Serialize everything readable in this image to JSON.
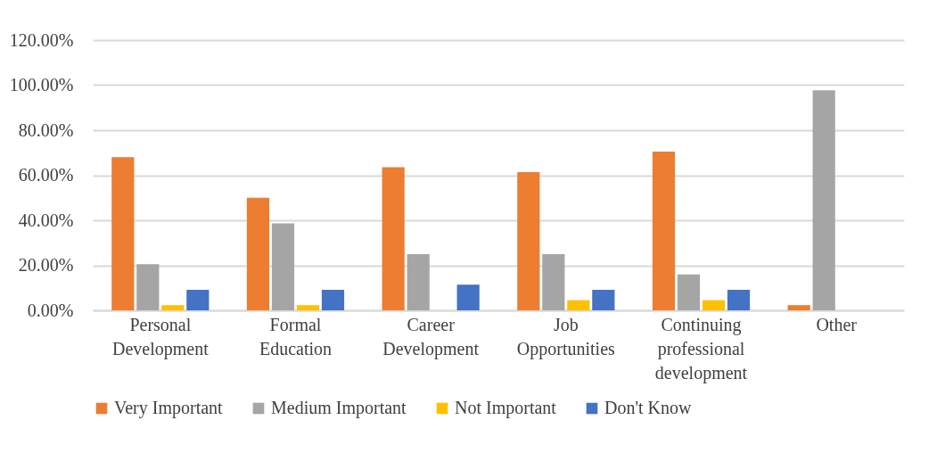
{
  "chart_data": {
    "type": "bar",
    "categories": [
      "Personal Development",
      "Formal Education",
      "Career Development",
      "Job Opportunities",
      "Continuing professional development",
      "Other"
    ],
    "series": [
      {
        "name": "Very Important",
        "color": "#ed7d31",
        "values": [
          68,
          50,
          63.6,
          61.4,
          70.5,
          2.3
        ]
      },
      {
        "name": "Medium Important",
        "color": "#a5a5a5",
        "values": [
          20.5,
          38.6,
          25,
          25,
          15.9,
          97.7
        ]
      },
      {
        "name": "Not Important",
        "color": "#ffc000",
        "values": [
          2.3,
          2.3,
          0,
          4.5,
          4.5,
          0
        ]
      },
      {
        "name": "Don't Know",
        "color": "#4472c4",
        "values": [
          9.1,
          9.1,
          11.4,
          9.1,
          9.1,
          0
        ]
      }
    ],
    "ylim": [
      0,
      120
    ],
    "yticks": [
      {
        "value": 0,
        "label": "0.00%"
      },
      {
        "value": 20,
        "label": "20.00%"
      },
      {
        "value": 40,
        "label": "40.00%"
      },
      {
        "value": 60,
        "label": "60.00%"
      },
      {
        "value": 80,
        "label": "80.00%"
      },
      {
        "value": 100,
        "label": "100.00%"
      },
      {
        "value": 120,
        "label": "120.00%"
      }
    ],
    "grid": "y",
    "legend": "bottom"
  }
}
